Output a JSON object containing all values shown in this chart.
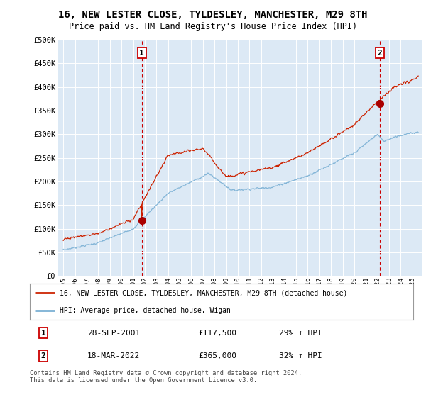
{
  "title": "16, NEW LESTER CLOSE, TYLDESLEY, MANCHESTER, M29 8TH",
  "subtitle": "Price paid vs. HM Land Registry's House Price Index (HPI)",
  "title_fontsize": 10,
  "subtitle_fontsize": 8.5,
  "ylabel_ticks": [
    "£0",
    "£50K",
    "£100K",
    "£150K",
    "£200K",
    "£250K",
    "£300K",
    "£350K",
    "£400K",
    "£450K",
    "£500K"
  ],
  "ytick_values": [
    0,
    50000,
    100000,
    150000,
    200000,
    250000,
    300000,
    350000,
    400000,
    450000,
    500000
  ],
  "ylim": [
    0,
    500000
  ],
  "xlim_start": 1994.5,
  "xlim_end": 2025.8,
  "xtick_years": [
    1995,
    1996,
    1997,
    1998,
    1999,
    2000,
    2001,
    2002,
    2003,
    2004,
    2005,
    2006,
    2007,
    2008,
    2009,
    2010,
    2011,
    2012,
    2013,
    2014,
    2015,
    2016,
    2017,
    2018,
    2019,
    2020,
    2021,
    2022,
    2023,
    2024,
    2025
  ],
  "background_color": "#ffffff",
  "plot_bg_color": "#dce9f5",
  "grid_color": "#ffffff",
  "transaction1": {
    "date": 2001.74,
    "price": 117500,
    "label": "1",
    "label_text": "28-SEP-2001",
    "price_text": "£117,500",
    "hpi_text": "29% ↑ HPI"
  },
  "transaction2": {
    "date": 2022.21,
    "price": 365000,
    "label": "2",
    "label_text": "18-MAR-2022",
    "price_text": "£365,000",
    "hpi_text": "32% ↑ HPI"
  },
  "vline_color": "#cc0000",
  "marker_color": "#aa0000",
  "line1_color": "#cc2200",
  "line2_color": "#7ab0d4",
  "legend_label1": "16, NEW LESTER CLOSE, TYLDESLEY, MANCHESTER, M29 8TH (detached house)",
  "legend_label2": "HPI: Average price, detached house, Wigan",
  "footer": "Contains HM Land Registry data © Crown copyright and database right 2024.\nThis data is licensed under the Open Government Licence v3.0."
}
